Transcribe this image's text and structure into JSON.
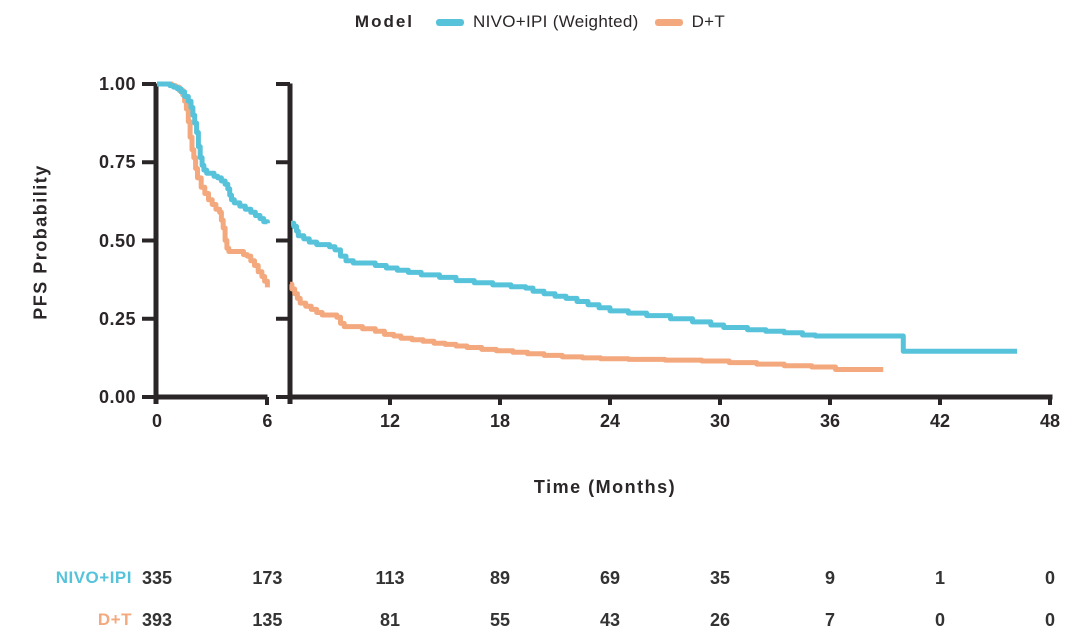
{
  "legend": {
    "title": "Model",
    "items": [
      {
        "label": "NIVO+IPI (Weighted)",
        "color": "#56C3DB"
      },
      {
        "label": "D+T",
        "color": "#F4A87E"
      }
    ]
  },
  "axes": {
    "ylabel": "PFS Probability",
    "xlabel": "Time (Months)",
    "axis_color": "#2A2627"
  },
  "chart_data": {
    "type": "line",
    "subtype": "kaplan-meier-step",
    "title": "",
    "xlabel": "Time (Months)",
    "ylabel": "PFS Probability",
    "legend_title": "Model",
    "legend_position": "top-center",
    "grid": false,
    "xlim": [
      0,
      48
    ],
    "ylim": [
      0.0,
      1.0
    ],
    "x_axis_break_between": [
      6,
      6.5
    ],
    "x_ticks": [
      0,
      6,
      12,
      18,
      24,
      30,
      36,
      42,
      48
    ],
    "y_ticks": [
      0,
      0.25,
      0.5,
      0.75,
      1
    ],
    "y_tick_labels": [
      "0.00",
      "0.25",
      "0.50",
      "0.75",
      "1.00"
    ],
    "series": [
      {
        "name": "NIVO+IPI (Weighted)",
        "color": "#56C3DB",
        "left_panel_steps": [
          [
            0,
            1
          ],
          [
            0.7,
            0.995
          ],
          [
            0.9,
            0.99
          ],
          [
            1.1,
            0.985
          ],
          [
            1.3,
            0.975
          ],
          [
            1.5,
            0.96
          ],
          [
            1.7,
            0.945
          ],
          [
            1.85,
            0.925
          ],
          [
            1.95,
            0.9
          ],
          [
            2.05,
            0.875
          ],
          [
            2.15,
            0.845
          ],
          [
            2.25,
            0.8
          ],
          [
            2.35,
            0.765
          ],
          [
            2.45,
            0.74
          ],
          [
            2.55,
            0.725
          ],
          [
            2.7,
            0.715
          ],
          [
            3.1,
            0.705
          ],
          [
            3.3,
            0.7
          ],
          [
            3.5,
            0.69
          ],
          [
            3.7,
            0.68
          ],
          [
            3.85,
            0.665
          ],
          [
            3.95,
            0.645
          ],
          [
            4.05,
            0.63
          ],
          [
            4.2,
            0.62
          ],
          [
            4.5,
            0.61
          ],
          [
            4.8,
            0.6
          ],
          [
            5.1,
            0.59
          ],
          [
            5.35,
            0.58
          ],
          [
            5.6,
            0.57
          ],
          [
            5.8,
            0.56
          ],
          [
            6,
            0.555
          ]
        ],
        "right_panel_steps": [
          [
            6.6,
            0.555
          ],
          [
            6.75,
            0.545
          ],
          [
            6.9,
            0.53
          ],
          [
            7.0,
            0.515
          ],
          [
            7.3,
            0.505
          ],
          [
            7.6,
            0.495
          ],
          [
            8.0,
            0.487
          ],
          [
            8.7,
            0.48
          ],
          [
            9.0,
            0.47
          ],
          [
            9.3,
            0.45
          ],
          [
            9.6,
            0.435
          ],
          [
            10.0,
            0.428
          ],
          [
            11.2,
            0.42
          ],
          [
            11.8,
            0.412
          ],
          [
            12.4,
            0.405
          ],
          [
            13.0,
            0.398
          ],
          [
            13.7,
            0.39
          ],
          [
            14.7,
            0.382
          ],
          [
            15.6,
            0.372
          ],
          [
            16.6,
            0.365
          ],
          [
            17.6,
            0.358
          ],
          [
            18.6,
            0.352
          ],
          [
            19.4,
            0.348
          ],
          [
            19.8,
            0.338
          ],
          [
            20.4,
            0.33
          ],
          [
            21.0,
            0.322
          ],
          [
            21.6,
            0.315
          ],
          [
            22.2,
            0.305
          ],
          [
            22.8,
            0.295
          ],
          [
            23.4,
            0.285
          ],
          [
            24.0,
            0.275
          ],
          [
            25.0,
            0.268
          ],
          [
            26.0,
            0.26
          ],
          [
            27.3,
            0.25
          ],
          [
            28.5,
            0.24
          ],
          [
            29.5,
            0.23
          ],
          [
            30.2,
            0.222
          ],
          [
            31.5,
            0.215
          ],
          [
            32.5,
            0.21
          ],
          [
            33.5,
            0.205
          ],
          [
            34.5,
            0.198
          ],
          [
            35.2,
            0.195
          ],
          [
            40.0,
            0.146
          ],
          [
            46.2,
            0.146
          ]
        ]
      },
      {
        "name": "D+T",
        "color": "#F4A87E",
        "left_panel_steps": [
          [
            0,
            1
          ],
          [
            0.8,
            0.995
          ],
          [
            1,
            0.99
          ],
          [
            1.2,
            0.98
          ],
          [
            1.4,
            0.965
          ],
          [
            1.5,
            0.945
          ],
          [
            1.6,
            0.92
          ],
          [
            1.7,
            0.88
          ],
          [
            1.8,
            0.83
          ],
          [
            1.9,
            0.79
          ],
          [
            2,
            0.765
          ],
          [
            2.1,
            0.73
          ],
          [
            2.2,
            0.7
          ],
          [
            2.4,
            0.67
          ],
          [
            2.6,
            0.65
          ],
          [
            2.8,
            0.63
          ],
          [
            3,
            0.615
          ],
          [
            3.2,
            0.6
          ],
          [
            3.4,
            0.59
          ],
          [
            3.5,
            0.565
          ],
          [
            3.6,
            0.54
          ],
          [
            3.7,
            0.5
          ],
          [
            3.8,
            0.475
          ],
          [
            3.9,
            0.465
          ],
          [
            4.7,
            0.455
          ],
          [
            4.9,
            0.45
          ],
          [
            5.1,
            0.435
          ],
          [
            5.3,
            0.42
          ],
          [
            5.5,
            0.4
          ],
          [
            5.7,
            0.385
          ],
          [
            5.85,
            0.37
          ],
          [
            6,
            0.35
          ]
        ],
        "right_panel_steps": [
          [
            6.55,
            0.36
          ],
          [
            6.65,
            0.345
          ],
          [
            6.8,
            0.33
          ],
          [
            6.95,
            0.315
          ],
          [
            7.1,
            0.3
          ],
          [
            7.4,
            0.29
          ],
          [
            7.7,
            0.28
          ],
          [
            8.0,
            0.27
          ],
          [
            8.3,
            0.262
          ],
          [
            9.1,
            0.255
          ],
          [
            9.3,
            0.235
          ],
          [
            9.5,
            0.225
          ],
          [
            10.5,
            0.218
          ],
          [
            11.2,
            0.21
          ],
          [
            11.7,
            0.2
          ],
          [
            12.2,
            0.195
          ],
          [
            12.6,
            0.188
          ],
          [
            13.2,
            0.183
          ],
          [
            13.8,
            0.178
          ],
          [
            14.4,
            0.172
          ],
          [
            15.0,
            0.168
          ],
          [
            15.6,
            0.163
          ],
          [
            16.2,
            0.158
          ],
          [
            17.0,
            0.152
          ],
          [
            17.8,
            0.148
          ],
          [
            18.7,
            0.143
          ],
          [
            19.5,
            0.138
          ],
          [
            20.4,
            0.133
          ],
          [
            21.4,
            0.128
          ],
          [
            22.5,
            0.125
          ],
          [
            23.5,
            0.122
          ],
          [
            25.0,
            0.12
          ],
          [
            27.0,
            0.118
          ],
          [
            29.0,
            0.115
          ],
          [
            30.5,
            0.11
          ],
          [
            32.0,
            0.105
          ],
          [
            33.5,
            0.1
          ],
          [
            35.0,
            0.096
          ],
          [
            36.3,
            0.088
          ],
          [
            38.9,
            0.088
          ]
        ]
      }
    ],
    "number_at_risk": {
      "times": [
        0,
        6,
        12,
        18,
        24,
        30,
        36,
        42,
        48
      ],
      "rows": [
        {
          "label": "NIVO+IPI",
          "color": "#56C3DB",
          "values": [
            335,
            173,
            113,
            89,
            69,
            35,
            9,
            1,
            0
          ]
        },
        {
          "label": "D+T",
          "color": "#F4A87E",
          "values": [
            393,
            135,
            81,
            55,
            43,
            26,
            7,
            0,
            0
          ]
        }
      ]
    }
  }
}
